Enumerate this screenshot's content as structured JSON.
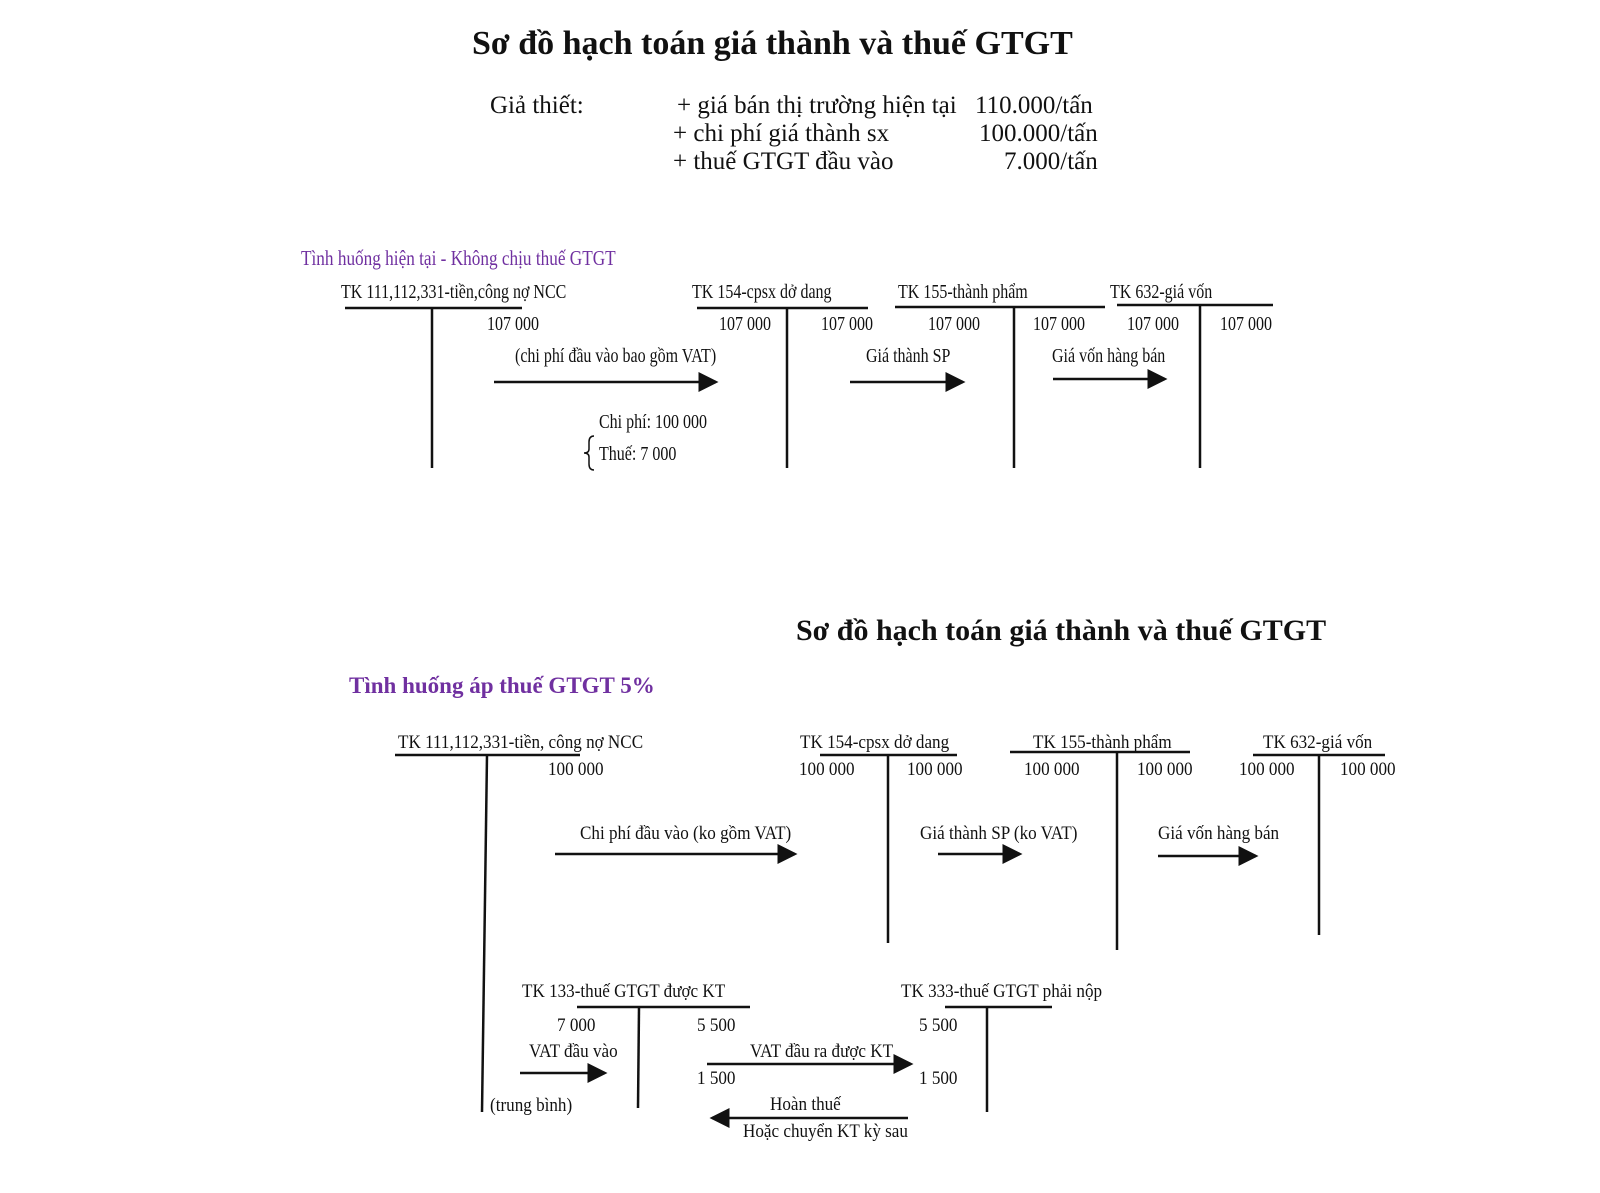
{
  "top": {
    "title": "Sơ đồ hạch toán giá thành và thuế GTGT",
    "given_label": "Giả thiết:",
    "given_items": [
      {
        "label": "+ giá bán thị trường hiện tại",
        "value": "110.000/tấn"
      },
      {
        "label": "+ chi phí giá thành sx",
        "value": "100.000/tấn"
      },
      {
        "label": "+ thuế GTGT đầu vào",
        "value": "7.000/tấn"
      }
    ],
    "scenario": "Tình huống hiện tại - Không chịu thuế GTGT",
    "accounts": {
      "tk111": "TK 111,112,331-tiền,công nợ NCC",
      "tk154": "TK 154-cpsx dở dang",
      "tk155": "TK 155-thành phẩm",
      "tk632": "TK 632-giá vốn"
    },
    "amounts": {
      "tk111_credit": "107 000",
      "tk154_debit": "107 000",
      "tk154_credit": "107 000",
      "tk155_debit": "107 000",
      "tk155_credit": "107 000",
      "tk632_debit": "107 000",
      "tk632_credit": "107 000"
    },
    "flows": {
      "input_cost": "(chi phí đầu vào bao gồm VAT)",
      "product_cost": "Giá thành SP",
      "cogs": "Giá vốn hàng bán"
    },
    "breakdown": {
      "cost": "Chi phí: 100 000",
      "tax": "Thuế: 7 000"
    }
  },
  "bottom": {
    "title": "Sơ đồ hạch toán giá thành và thuế GTGT",
    "scenario": "Tình huống áp thuế GTGT 5%",
    "accounts": {
      "tk111": "TK 111,112,331-tiền, công nợ NCC",
      "tk154": "TK 154-cpsx dở dang",
      "tk155": "TK 155-thành phẩm",
      "tk632": "TK 632-giá vốn",
      "tk133": "TK 133-thuế GTGT được KT",
      "tk333": "TK 333-thuế GTGT phải nộp"
    },
    "amounts": {
      "tk111_credit": "100 000",
      "tk154_debit": "100 000",
      "tk154_credit": "100 000",
      "tk155_debit": "100 000",
      "tk155_credit": "100 000",
      "tk632_debit": "100 000",
      "tk632_credit": "100 000",
      "tk133_debit": "7 000",
      "tk133_credit1": "5 500",
      "tk133_credit2": "1 500",
      "tk333_debit1": "5 500",
      "tk333_debit2": "1 500"
    },
    "flows": {
      "input_cost": "Chi phí đầu vào (ko gồm VAT)",
      "product_cost": "Giá thành SP (ko VAT)",
      "cogs": "Giá vốn hàng bán",
      "vat_in": "VAT đầu vào",
      "average": "(trung bình)",
      "vat_out": "VAT đầu ra được KT",
      "refund": "Hoàn thuế",
      "carry": "Hoặc chuyển KT kỳ sau"
    }
  }
}
